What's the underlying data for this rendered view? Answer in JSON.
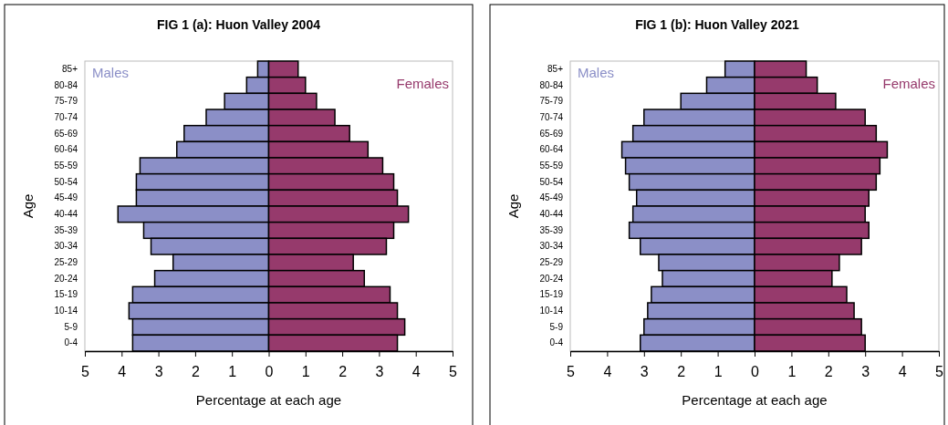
{
  "chart_data": [
    {
      "type": "bar",
      "orientation": "horizontal",
      "stacked": true,
      "title": "FIG 1 (a): Huon Valley 2004",
      "xlabel": "Percentage at each age",
      "ylabel": "Age",
      "legend": false,
      "grid": false,
      "categories": [
        "85+",
        "80-84",
        "75-79",
        "70-74",
        "65-69",
        "60-64",
        "55-59",
        "50-54",
        "45-49",
        "40-44",
        "35-39",
        "30-34",
        "25-29",
        "20-24",
        "15-19",
        "10-14",
        "5-9",
        "0-4"
      ],
      "xlim": [
        -5,
        5
      ],
      "xticks": [
        {
          "value": -5,
          "label": "5"
        },
        {
          "value": -4,
          "label": "4"
        },
        {
          "value": -3,
          "label": "3"
        },
        {
          "value": -2,
          "label": "2"
        },
        {
          "value": -1,
          "label": "1"
        },
        0,
        1,
        2,
        3,
        4,
        5
      ],
      "series": [
        {
          "name": "Males",
          "color": "#8b8fc7",
          "values": [
            -0.3,
            -0.6,
            -1.2,
            -1.7,
            -2.3,
            -2.5,
            -3.5,
            -3.6,
            -3.6,
            -4.1,
            -3.4,
            -3.2,
            -2.6,
            -3.1,
            -3.7,
            -3.8,
            -3.7,
            -3.7
          ]
        },
        {
          "name": "Females",
          "color": "#963a6c",
          "values": [
            0.8,
            1.0,
            1.3,
            1.8,
            2.2,
            2.7,
            3.1,
            3.4,
            3.5,
            3.8,
            3.4,
            3.2,
            2.3,
            2.6,
            3.3,
            3.5,
            3.7,
            3.5
          ]
        }
      ]
    },
    {
      "type": "bar",
      "orientation": "horizontal",
      "stacked": true,
      "title": "FIG 1 (b): Huon Valley 2021",
      "xlabel": "Percentage at each age",
      "ylabel": "Age",
      "legend": false,
      "grid": false,
      "categories": [
        "85+",
        "80-84",
        "75-79",
        "70-74",
        "65-69",
        "60-64",
        "55-59",
        "50-54",
        "45-49",
        "40-44",
        "35-39",
        "30-34",
        "25-29",
        "20-24",
        "15-19",
        "10-14",
        "5-9",
        "0-4"
      ],
      "xlim": [
        -5,
        5
      ],
      "xticks": [
        {
          "value": -5,
          "label": "5"
        },
        {
          "value": -4,
          "label": "4"
        },
        {
          "value": -3,
          "label": "3"
        },
        {
          "value": -2,
          "label": "2"
        },
        {
          "value": -1,
          "label": "1"
        },
        0,
        1,
        2,
        3,
        4,
        5
      ],
      "series": [
        {
          "name": "Males",
          "color": "#8b8fc7",
          "values": [
            -0.8,
            -1.3,
            -2.0,
            -3.0,
            -3.3,
            -3.6,
            -3.5,
            -3.4,
            -3.2,
            -3.3,
            -3.4,
            -3.1,
            -2.6,
            -2.5,
            -2.8,
            -2.9,
            -3.0,
            -3.1
          ]
        },
        {
          "name": "Females",
          "color": "#963a6c",
          "values": [
            1.4,
            1.7,
            2.2,
            3.0,
            3.3,
            3.6,
            3.4,
            3.3,
            3.1,
            3.0,
            3.1,
            2.9,
            2.3,
            2.1,
            2.5,
            2.7,
            2.9,
            3.0
          ]
        }
      ]
    }
  ]
}
